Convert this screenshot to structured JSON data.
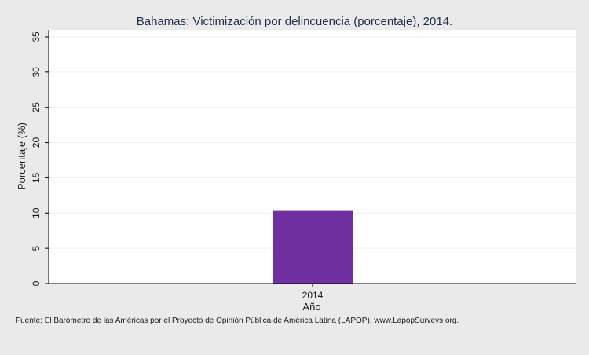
{
  "chart_data": {
    "type": "bar",
    "title": "Bahamas: Victimización por delincuencia (porcentaje), 2014.",
    "xlabel": "Año",
    "ylabel": "Porcentaje (%)",
    "categories": [
      "2014"
    ],
    "values": [
      10.3
    ],
    "ylim": [
      0,
      36
    ],
    "yticks": [
      "0",
      "5",
      "10",
      "15",
      "20",
      "25",
      "30",
      "35"
    ],
    "grid": true,
    "legend": "none",
    "colors": {
      "bar": "#7030a0",
      "plot_background": "#ffffff",
      "page_background": "#eaeaea",
      "gridline": "#eeeeee",
      "axis": "#000000"
    }
  },
  "footer": {
    "source": "Fuente: El Barómetro de las Américas por el Proyecto de Opinión Pública de América Latina (LAPOP), www.LapopSurveys.org."
  }
}
